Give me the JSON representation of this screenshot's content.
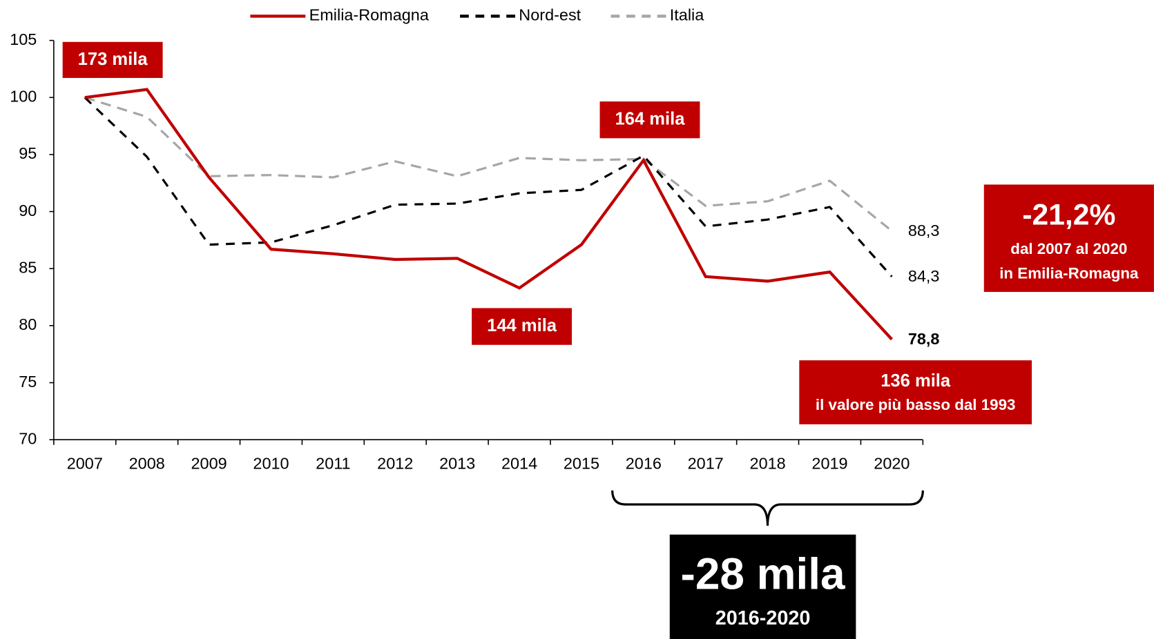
{
  "chart_data": {
    "type": "line",
    "categories": [
      "2007",
      "2008",
      "2009",
      "2010",
      "2011",
      "2012",
      "2013",
      "2014",
      "2015",
      "2016",
      "2017",
      "2018",
      "2019",
      "2020"
    ],
    "ylim": [
      70,
      105
    ],
    "yticks": [
      70,
      75,
      80,
      85,
      90,
      95,
      100,
      105
    ],
    "series": [
      {
        "name": "Emilia-Romagna",
        "color": "#c00000",
        "line_style": "solid",
        "values": [
          100,
          100.7,
          93,
          86.7,
          86.3,
          85.8,
          85.9,
          83.3,
          87.1,
          94.5,
          84.3,
          83.9,
          84.7,
          78.8
        ],
        "value_labels": [
          null,
          null,
          null,
          null,
          null,
          null,
          null,
          null,
          null,
          null,
          null,
          null,
          null,
          "78,8"
        ]
      },
      {
        "name": "Nord-est",
        "color": "#000000",
        "line_style": "dashed",
        "values": [
          100,
          94.8,
          87.1,
          87.3,
          88.8,
          90.6,
          90.7,
          91.6,
          91.9,
          94.9,
          88.7,
          89.3,
          90.4,
          84.3
        ],
        "value_labels": [
          null,
          null,
          null,
          null,
          null,
          null,
          null,
          null,
          null,
          null,
          null,
          null,
          null,
          "84,3"
        ]
      },
      {
        "name": "Italia",
        "color": "#a6a6a6",
        "line_style": "dashed",
        "values": [
          100,
          98.3,
          93.1,
          93.2,
          93.0,
          94.4,
          93.1,
          94.7,
          94.5,
          94.6,
          90.5,
          90.9,
          92.7,
          88.3
        ],
        "value_labels": [
          null,
          null,
          null,
          null,
          null,
          null,
          null,
          null,
          null,
          null,
          null,
          null,
          null,
          "88,3"
        ]
      }
    ],
    "annotations": [
      {
        "text": "173 mila"
      },
      {
        "text": "164 mila"
      },
      {
        "text": "144 mila"
      },
      {
        "text": "136 mila",
        "subtext": "il valore più basso dal 1993"
      },
      {
        "text": "-21,2%",
        "subtext": "dal 2007 al 2020",
        "subtext2": "in Emilia-Romagna"
      },
      {
        "text": "-28 mila",
        "subtext": "2016-2020"
      }
    ]
  }
}
